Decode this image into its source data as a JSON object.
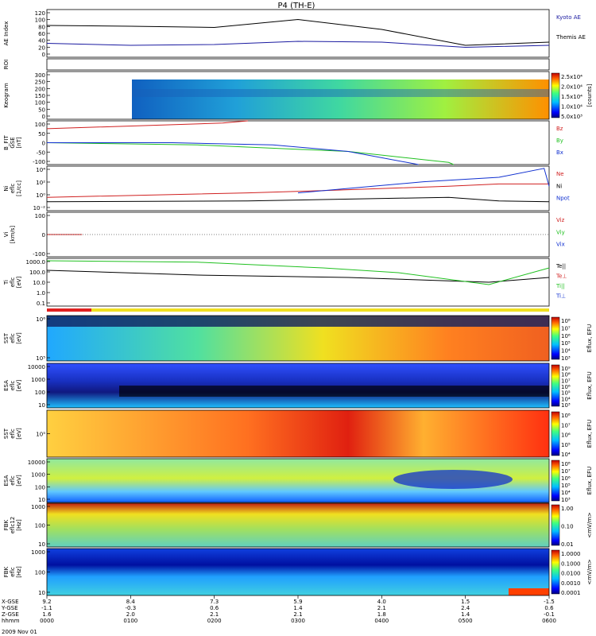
{
  "title": "P4 (TH-E)",
  "date_label": "2009 Nov 01",
  "colors": {
    "kyoto": "#1a1aa0",
    "themis": "#000000",
    "red": "#d02020",
    "green": "#20c020",
    "blue": "#1030d0",
    "black": "#000000"
  },
  "panels": [
    {
      "id": "ae",
      "ylabel": [
        "AE Index"
      ],
      "ticks": [
        "120",
        "100",
        "80",
        "60",
        "40",
        "20",
        "0"
      ],
      "legend": [
        {
          "text": "Kyoto AE",
          "color": "#1a1aa0"
        },
        {
          "text": "Themis AE",
          "color": "#000000"
        }
      ]
    },
    {
      "id": "roi",
      "ylabel": [
        "ROI"
      ],
      "ticks": [],
      "legend": []
    },
    {
      "id": "keogram",
      "ylabel": [
        "Keogram"
      ],
      "ticks": [
        "300",
        "250",
        "200",
        "150",
        "100",
        "50",
        "0"
      ],
      "legend": [],
      "colorbar": {
        "ticks": [
          "2.5x10⁴",
          "2.0x10⁴",
          "1.5x10⁴",
          "1.0x10⁴",
          "5.0x10³"
        ],
        "unit": "[counts]"
      }
    },
    {
      "id": "bfield",
      "ylabel": [
        "B_FIT",
        "GSE",
        "[nT]"
      ],
      "ticks": [
        "100",
        "50",
        "0",
        "-50",
        "-100"
      ],
      "legend": [
        {
          "text": "Bz",
          "color": "#d02020"
        },
        {
          "text": "By",
          "color": "#20c020"
        },
        {
          "text": "Bx",
          "color": "#1030d0"
        }
      ]
    },
    {
      "id": "density",
      "ylabel": [
        "Ni",
        "eflc",
        "[1/cc]"
      ],
      "ticks": [
        "10⁴",
        "10²",
        "10⁰",
        "10⁻²"
      ],
      "legend": [
        {
          "text": "Ne",
          "color": "#d02020"
        },
        {
          "text": "Ni",
          "color": "#000000"
        },
        {
          "text": "Npot",
          "color": "#1030d0"
        }
      ]
    },
    {
      "id": "velocity",
      "ylabel": [
        "Vi",
        "",
        "[km/s]"
      ],
      "ticks": [
        "100",
        "0",
        "-100"
      ],
      "legend": [
        {
          "text": "Viz",
          "color": "#d02020"
        },
        {
          "text": "Viy",
          "color": "#20c020"
        },
        {
          "text": "Vix",
          "color": "#1030d0"
        }
      ]
    },
    {
      "id": "temperature",
      "ylabel": [
        "Ti",
        "eflc",
        "[eV]"
      ],
      "ticks": [
        "1000.0",
        "100.0",
        "10.0",
        "1.0",
        "0.1"
      ],
      "legend": [
        {
          "text": "Te||",
          "color": "#000000"
        },
        {
          "text": "Te⊥",
          "color": "#d02020"
        },
        {
          "text": "Ti||",
          "color": "#20c020"
        },
        {
          "text": "Ti⊥",
          "color": "#1030d0"
        }
      ]
    },
    {
      "id": "sst_e",
      "ylabel": [
        "SST",
        "eflc",
        "[eV]"
      ],
      "ticks": [
        "10⁶",
        "10⁵"
      ],
      "legend": [],
      "colorbar": {
        "ticks": [
          "10⁸",
          "10⁷",
          "10⁶",
          "10⁵",
          "10⁴",
          "10³"
        ],
        "unit": "Eflux, EFU"
      }
    },
    {
      "id": "esa_e",
      "ylabel": [
        "ESA",
        "eflc",
        "[eV]"
      ],
      "ticks": [
        "10000",
        "1000",
        "100",
        "10"
      ],
      "legend": [],
      "colorbar": {
        "ticks": [
          "10⁹",
          "10⁸",
          "10⁷",
          "10⁶",
          "10⁵",
          "10⁴",
          "10³"
        ],
        "unit": "Eflux, EFU"
      }
    },
    {
      "id": "sst_i",
      "ylabel": [
        "SST",
        "eflc",
        "[eV]"
      ],
      "ticks": [
        "10⁵"
      ],
      "legend": [],
      "colorbar": {
        "ticks": [
          "10⁸",
          "10⁷",
          "10⁶",
          "10⁵",
          "10⁴"
        ],
        "unit": "Eflux, EFU"
      }
    },
    {
      "id": "esa_i",
      "ylabel": [
        "ESA",
        "eflc",
        "[eV]"
      ],
      "ticks": [
        "10000",
        "1000",
        "100",
        "10"
      ],
      "legend": [],
      "colorbar": {
        "ticks": [
          "10⁸",
          "10⁷",
          "10⁶",
          "10⁵",
          "10⁴",
          "10³"
        ],
        "unit": "Eflux, EFU"
      }
    },
    {
      "id": "fbk_e",
      "ylabel": [
        "FBK",
        "eflc12",
        "[Hz]"
      ],
      "ticks": [
        "1000",
        "100",
        "10"
      ],
      "legend": [],
      "colorbar": {
        "ticks": [
          "1.00",
          "0.10",
          "0.01"
        ],
        "unit": "<mV/m>"
      }
    },
    {
      "id": "fbk_b",
      "ylabel": [
        "FBK",
        "eflc",
        "[Hz]"
      ],
      "ticks": [
        "1000",
        "100",
        "10"
      ],
      "legend": [],
      "colorbar": {
        "ticks": [
          "1.0000",
          "0.1000",
          "0.0100",
          "0.0010",
          "0.0001"
        ],
        "unit": "<mV/m>"
      }
    }
  ],
  "xaxis": {
    "row_labels": [
      "X-GSE",
      "Y-GSE",
      "Z-GSE",
      "hhmm"
    ],
    "columns": [
      {
        "x": "9.2",
        "y": "-1.1",
        "z": "1.6",
        "t": "0000"
      },
      {
        "x": "8.4",
        "y": "-0.3",
        "z": "2.0",
        "t": "0100"
      },
      {
        "x": "7.3",
        "y": "0.6",
        "z": "2.1",
        "t": "0200"
      },
      {
        "x": "5.9",
        "y": "1.4",
        "z": "2.1",
        "t": "0300"
      },
      {
        "x": "4.0",
        "y": "2.1",
        "z": "1.8",
        "t": "0400"
      },
      {
        "x": "1.5",
        "y": "2.4",
        "z": "1.4",
        "t": "0500"
      },
      {
        "x": "-1.5",
        "y": "0.6",
        "z": "-0.1",
        "t": "0600"
      }
    ]
  },
  "chart_data": {
    "type": "line",
    "title": "P4 (TH-E)",
    "x_label": "hhmm",
    "x": [
      "0000",
      "0100",
      "0200",
      "0300",
      "0400",
      "0500",
      "0600"
    ],
    "series": [
      {
        "name": "Kyoto AE",
        "values": [
          35,
          30,
          32,
          40,
          38,
          25,
          30
        ]
      },
      {
        "name": "Themis AE",
        "values": [
          80,
          78,
          75,
          95,
          70,
          30,
          38
        ]
      }
    ],
    "ylim": [
      0,
      120
    ]
  }
}
